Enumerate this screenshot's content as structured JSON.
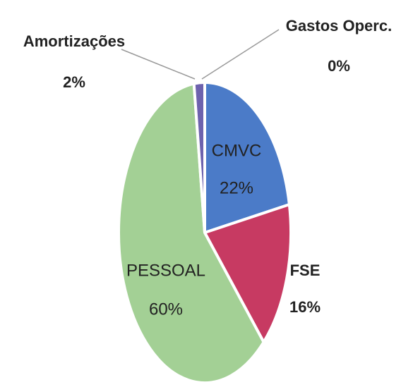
{
  "chart_data": {
    "type": "pie",
    "categories": [
      "Gastos Operc.",
      "CMVC",
      "FSE",
      "PESSOAL",
      "Amortizações"
    ],
    "values": [
      0,
      22,
      16,
      60,
      2
    ],
    "value_labels": [
      "0%",
      "22%",
      "16%",
      "60%",
      "2%"
    ],
    "colors": [
      "#8c8c8c",
      "#4b7bc8",
      "#c73a62",
      "#a3d095",
      "#6d62ad"
    ]
  }
}
